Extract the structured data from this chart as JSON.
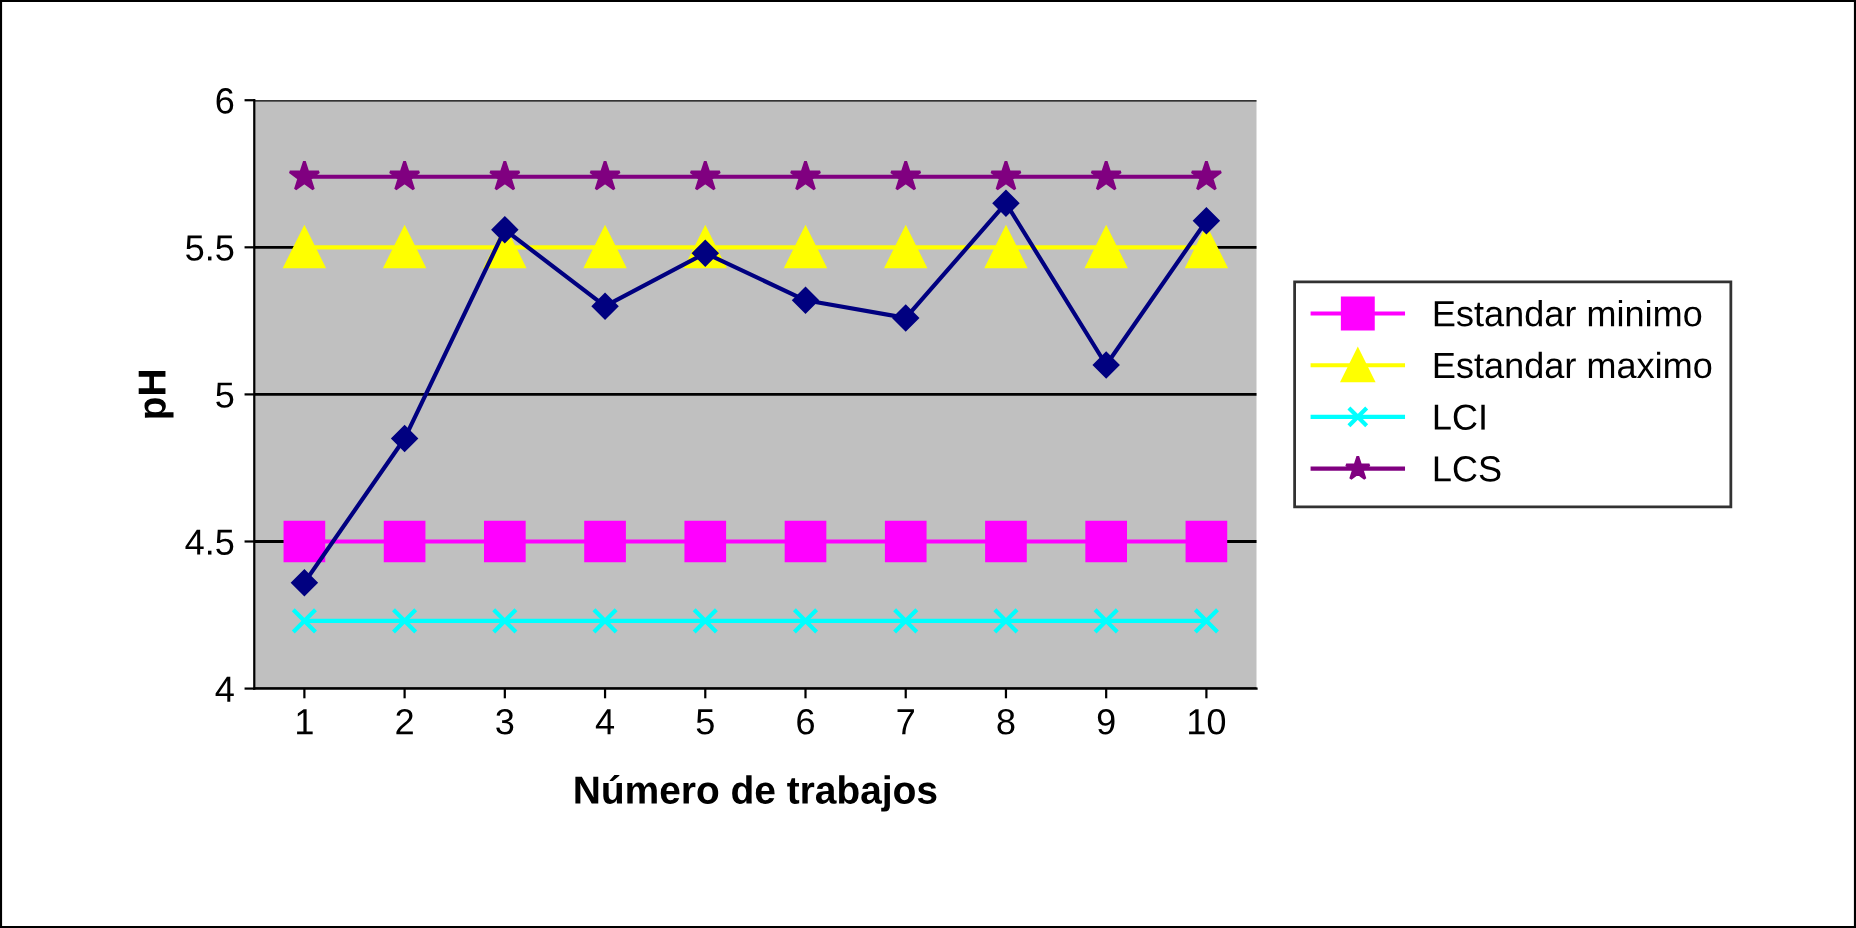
{
  "chart_data": {
    "type": "line",
    "xlabel": "Número de trabajos",
    "ylabel": "pH",
    "categories": [
      "1",
      "2",
      "3",
      "4",
      "5",
      "6",
      "7",
      "8",
      "9",
      "10"
    ],
    "series": [
      {
        "name": "Estandar minimo",
        "color": "#ff00ff",
        "marker": "square",
        "values": [
          4.5,
          4.5,
          4.5,
          4.5,
          4.5,
          4.5,
          4.5,
          4.5,
          4.5,
          4.5
        ]
      },
      {
        "name": "Estandar maximo",
        "color": "#ffff00",
        "marker": "triangle",
        "values": [
          5.5,
          5.5,
          5.5,
          5.5,
          5.5,
          5.5,
          5.5,
          5.5,
          5.5,
          5.5
        ]
      },
      {
        "name": "LCI",
        "color": "#00ffff",
        "marker": "cross",
        "values": [
          4.23,
          4.23,
          4.23,
          4.23,
          4.23,
          4.23,
          4.23,
          4.23,
          4.23,
          4.23
        ]
      },
      {
        "name": "LCS",
        "color": "#800080",
        "marker": "star",
        "values": [
          5.74,
          5.74,
          5.74,
          5.74,
          5.74,
          5.74,
          5.74,
          5.74,
          5.74,
          5.74
        ]
      },
      {
        "color": "#000080",
        "marker": "diamond",
        "values": [
          4.36,
          4.85,
          5.56,
          5.3,
          5.48,
          5.32,
          5.26,
          5.65,
          5.1,
          5.59
        ]
      }
    ],
    "ylim": [
      4,
      6
    ],
    "yticks": [
      4,
      4.5,
      5,
      5.5,
      6
    ],
    "grid": "y",
    "legend": "right"
  }
}
